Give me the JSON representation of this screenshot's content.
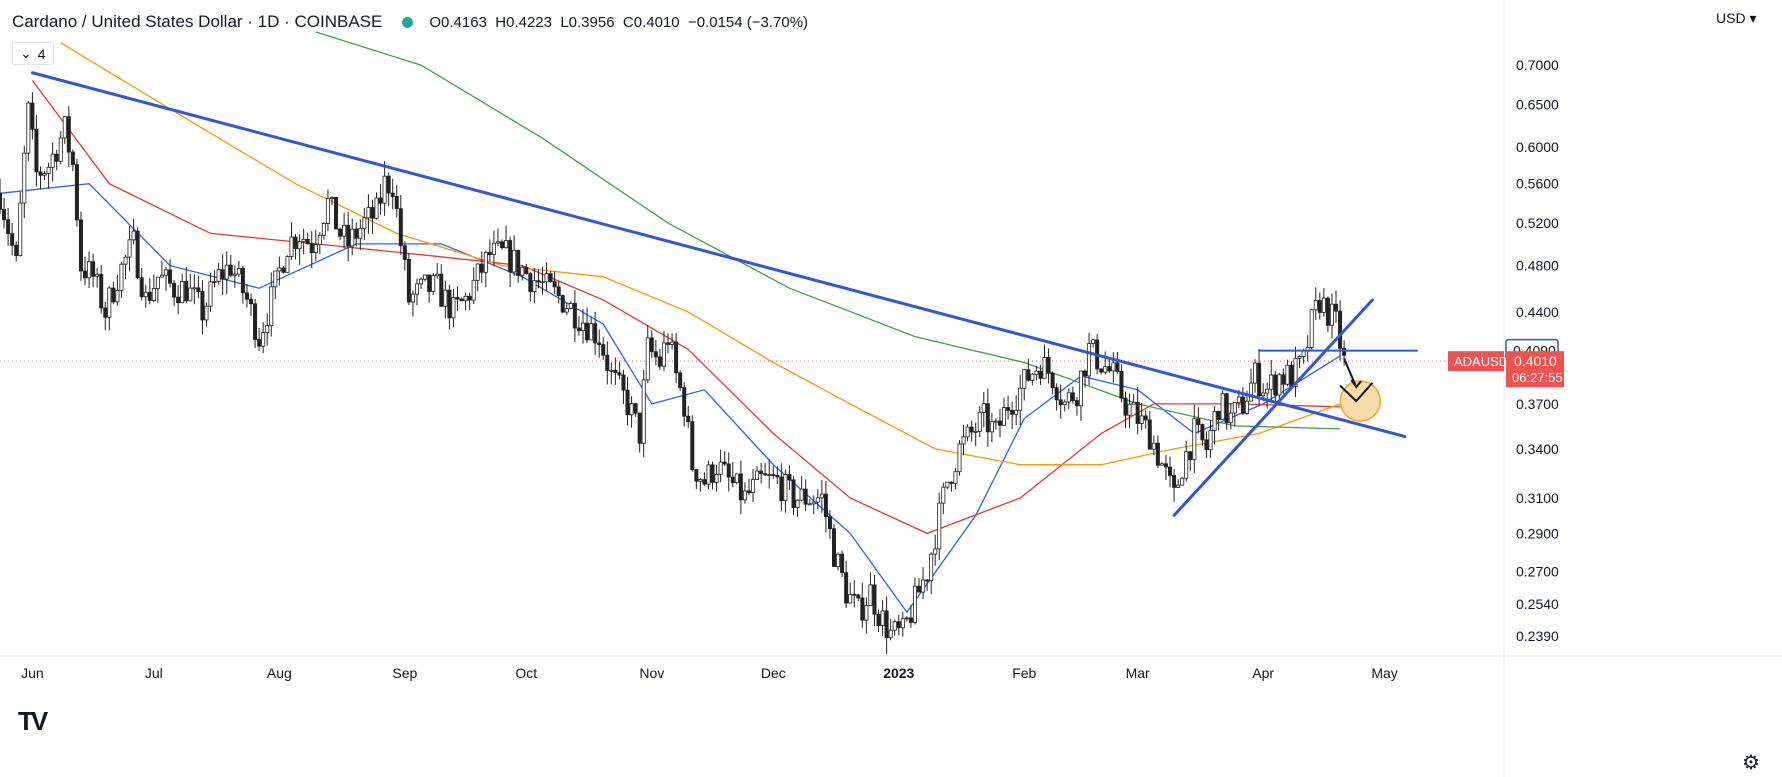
{
  "header": {
    "symbol": "Cardano / United States Dollar · 1D · COINBASE",
    "open": "O0.4163",
    "high": "H0.4223",
    "low": "L0.3956",
    "close": "C0.4010",
    "change": "−0.0154 (−3.70%)",
    "indicator_count": "4",
    "currency": "USD"
  },
  "chart_data": {
    "type": "candlestick",
    "symbol": "ADAUSD",
    "y_axis": {
      "scale": "log",
      "ticks": [
        "0.7000",
        "0.6500",
        "0.6000",
        "0.5600",
        "0.5200",
        "0.4800",
        "0.4400",
        "0.3700",
        "0.3400",
        "0.3100",
        "0.2900",
        "0.2700",
        "0.2540",
        "0.2390"
      ],
      "ylim": [
        0.232,
        0.745
      ]
    },
    "x_axis": {
      "ticks": [
        "Jun",
        "Jul",
        "Aug",
        "Sep",
        "Oct",
        "Nov",
        "Dec",
        "2023",
        "Feb",
        "Mar",
        "Apr",
        "May"
      ],
      "tick_dates": [
        "2022-06-01",
        "2022-07-01",
        "2022-08-01",
        "2022-09-01",
        "2022-10-01",
        "2022-11-01",
        "2022-12-01",
        "2023-01-01",
        "2023-02-01",
        "2023-03-01",
        "2023-04-01",
        "2023-05-01"
      ],
      "xlim": [
        "2022-05-24",
        "2023-05-30"
      ]
    },
    "last_price": {
      "label": "ADAUSD",
      "value": "0.4010",
      "countdown": "06:27:55",
      "price": 0.401
    },
    "level_marker": {
      "value": "0.4090",
      "price": 0.409
    },
    "price_path": [
      [
        "2022-05-24",
        0.55
      ],
      [
        "2022-05-28",
        0.48
      ],
      [
        "2022-05-31",
        0.64
      ],
      [
        "2022-06-02",
        0.57
      ],
      [
        "2022-06-05",
        0.58
      ],
      [
        "2022-06-09",
        0.62
      ],
      [
        "2022-06-11",
        0.58
      ],
      [
        "2022-06-13",
        0.48
      ],
      [
        "2022-06-16",
        0.47
      ],
      [
        "2022-06-19",
        0.44
      ],
      [
        "2022-06-22",
        0.47
      ],
      [
        "2022-06-26",
        0.5
      ],
      [
        "2022-06-29",
        0.45
      ],
      [
        "2022-07-02",
        0.47
      ],
      [
        "2022-07-06",
        0.46
      ],
      [
        "2022-07-09",
        0.46
      ],
      [
        "2022-07-13",
        0.44
      ],
      [
        "2022-07-17",
        0.47
      ],
      [
        "2022-07-20",
        0.48
      ],
      [
        "2022-07-24",
        0.45
      ],
      [
        "2022-07-27",
        0.42
      ],
      [
        "2022-07-30",
        0.45
      ],
      [
        "2022-08-03",
        0.5
      ],
      [
        "2022-08-06",
        0.51
      ],
      [
        "2022-08-09",
        0.5
      ],
      [
        "2022-08-13",
        0.54
      ],
      [
        "2022-08-16",
        0.51
      ],
      [
        "2022-08-18",
        0.5
      ],
      [
        "2022-08-22",
        0.52
      ],
      [
        "2022-08-25",
        0.53
      ],
      [
        "2022-08-27",
        0.56
      ],
      [
        "2022-08-29",
        0.56
      ],
      [
        "2022-08-31",
        0.5
      ],
      [
        "2022-09-02",
        0.45
      ],
      [
        "2022-09-06",
        0.46
      ],
      [
        "2022-09-09",
        0.46
      ],
      [
        "2022-09-13",
        0.44
      ],
      [
        "2022-09-16",
        0.45
      ],
      [
        "2022-09-19",
        0.47
      ],
      [
        "2022-09-22",
        0.49
      ],
      [
        "2022-09-26",
        0.49
      ],
      [
        "2022-09-29",
        0.48
      ],
      [
        "2022-10-02",
        0.47
      ],
      [
        "2022-10-06",
        0.46
      ],
      [
        "2022-10-10",
        0.45
      ],
      [
        "2022-10-13",
        0.44
      ],
      [
        "2022-10-16",
        0.43
      ],
      [
        "2022-10-19",
        0.42
      ],
      [
        "2022-10-22",
        0.39
      ],
      [
        "2022-10-26",
        0.37
      ],
      [
        "2022-10-29",
        0.35
      ],
      [
        "2022-10-31",
        0.41
      ],
      [
        "2022-11-03",
        0.4
      ],
      [
        "2022-11-05",
        0.42
      ],
      [
        "2022-11-07",
        0.39
      ],
      [
        "2022-11-09",
        0.37
      ],
      [
        "2022-11-11",
        0.33
      ],
      [
        "2022-11-14",
        0.32
      ],
      [
        "2022-11-17",
        0.33
      ],
      [
        "2022-11-20",
        0.32
      ],
      [
        "2022-11-24",
        0.31
      ],
      [
        "2022-11-28",
        0.32
      ],
      [
        "2022-12-02",
        0.32
      ],
      [
        "2022-12-06",
        0.31
      ],
      [
        "2022-12-10",
        0.31
      ],
      [
        "2022-12-13",
        0.31
      ],
      [
        "2022-12-16",
        0.28
      ],
      [
        "2022-12-19",
        0.26
      ],
      [
        "2022-12-22",
        0.25
      ],
      [
        "2022-12-25",
        0.26
      ],
      [
        "2022-12-27",
        0.25
      ],
      [
        "2022-12-30",
        0.24
      ],
      [
        "2023-01-02",
        0.24
      ],
      [
        "2023-01-04",
        0.25
      ],
      [
        "2023-01-08",
        0.27
      ],
      [
        "2023-01-10",
        0.29
      ],
      [
        "2023-01-13",
        0.32
      ],
      [
        "2023-01-16",
        0.34
      ],
      [
        "2023-01-19",
        0.35
      ],
      [
        "2023-01-22",
        0.36
      ],
      [
        "2023-01-25",
        0.35
      ],
      [
        "2023-01-28",
        0.37
      ],
      [
        "2023-01-31",
        0.38
      ],
      [
        "2023-02-02",
        0.39
      ],
      [
        "2023-02-05",
        0.4
      ],
      [
        "2023-02-08",
        0.39
      ],
      [
        "2023-02-11",
        0.37
      ],
      [
        "2023-02-14",
        0.38
      ],
      [
        "2023-02-17",
        0.41
      ],
      [
        "2023-02-20",
        0.4
      ],
      [
        "2023-02-23",
        0.39
      ],
      [
        "2023-02-26",
        0.37
      ],
      [
        "2023-03-01",
        0.36
      ],
      [
        "2023-03-04",
        0.35
      ],
      [
        "2023-03-07",
        0.33
      ],
      [
        "2023-03-10",
        0.31
      ],
      [
        "2023-03-12",
        0.33
      ],
      [
        "2023-03-15",
        0.35
      ],
      [
        "2023-03-18",
        0.34
      ],
      [
        "2023-03-21",
        0.37
      ],
      [
        "2023-03-24",
        0.36
      ],
      [
        "2023-03-27",
        0.37
      ],
      [
        "2023-03-30",
        0.39
      ],
      [
        "2023-04-02",
        0.38
      ],
      [
        "2023-04-05",
        0.39
      ],
      [
        "2023-04-08",
        0.39
      ],
      [
        "2023-04-11",
        0.4
      ],
      [
        "2023-04-13",
        0.43
      ],
      [
        "2023-04-15",
        0.45
      ],
      [
        "2023-04-17",
        0.44
      ],
      [
        "2023-04-19",
        0.43
      ],
      [
        "2023-04-21",
        0.4
      ]
    ],
    "moving_averages": [
      {
        "color": "#2962ff",
        "points": [
          [
            "2022-05-24",
            0.55
          ],
          [
            "2022-06-15",
            0.56
          ],
          [
            "2022-07-05",
            0.48
          ],
          [
            "2022-07-27",
            0.46
          ],
          [
            "2022-08-20",
            0.5
          ],
          [
            "2022-09-10",
            0.5
          ],
          [
            "2022-09-30",
            0.47
          ],
          [
            "2022-10-20",
            0.43
          ],
          [
            "2022-11-01",
            0.37
          ],
          [
            "2022-11-14",
            0.38
          ],
          [
            "2022-12-01",
            0.33
          ],
          [
            "2022-12-20",
            0.29
          ],
          [
            "2023-01-03",
            0.25
          ],
          [
            "2023-01-20",
            0.3
          ],
          [
            "2023-02-01",
            0.36
          ],
          [
            "2023-02-15",
            0.39
          ],
          [
            "2023-03-01",
            0.38
          ],
          [
            "2023-03-15",
            0.35
          ],
          [
            "2023-04-01",
            0.37
          ],
          [
            "2023-04-20",
            0.405
          ]
        ]
      },
      {
        "color": "#e53935",
        "points": [
          [
            "2022-06-01",
            0.68
          ],
          [
            "2022-06-20",
            0.56
          ],
          [
            "2022-07-15",
            0.51
          ],
          [
            "2022-08-10",
            0.5
          ],
          [
            "2022-09-05",
            0.49
          ],
          [
            "2022-09-30",
            0.48
          ],
          [
            "2022-10-20",
            0.45
          ],
          [
            "2022-11-10",
            0.41
          ],
          [
            "2022-12-01",
            0.35
          ],
          [
            "2022-12-20",
            0.31
          ],
          [
            "2023-01-08",
            0.29
          ],
          [
            "2023-01-31",
            0.31
          ],
          [
            "2023-02-20",
            0.35
          ],
          [
            "2023-03-05",
            0.37
          ],
          [
            "2023-03-25",
            0.37
          ],
          [
            "2023-04-20",
            0.368
          ]
        ]
      },
      {
        "color": "#ff9800",
        "points": [
          [
            "2022-06-08",
            0.73
          ],
          [
            "2022-07-10",
            0.63
          ],
          [
            "2022-08-05",
            0.56
          ],
          [
            "2022-08-30",
            0.51
          ],
          [
            "2022-09-25",
            0.48
          ],
          [
            "2022-10-20",
            0.47
          ],
          [
            "2022-11-10",
            0.44
          ],
          [
            "2022-12-01",
            0.4
          ],
          [
            "2022-12-20",
            0.37
          ],
          [
            "2023-01-10",
            0.34
          ],
          [
            "2023-01-31",
            0.33
          ],
          [
            "2023-02-20",
            0.33
          ],
          [
            "2023-03-10",
            0.34
          ],
          [
            "2023-03-31",
            0.35
          ],
          [
            "2023-04-20",
            0.37
          ]
        ]
      },
      {
        "color": "#43a047",
        "points": [
          [
            "2022-08-10",
            0.745
          ],
          [
            "2022-09-05",
            0.7
          ],
          [
            "2022-10-05",
            0.61
          ],
          [
            "2022-11-05",
            0.52
          ],
          [
            "2022-12-05",
            0.46
          ],
          [
            "2023-01-05",
            0.42
          ],
          [
            "2023-02-01",
            0.4
          ],
          [
            "2023-03-01",
            0.37
          ],
          [
            "2023-03-25",
            0.355
          ],
          [
            "2023-04-20",
            0.353
          ]
        ]
      }
    ],
    "trendlines": [
      {
        "color": "#2f57d6",
        "from": [
          "2022-06-01",
          0.69
        ],
        "to": [
          "2023-05-06",
          0.348
        ]
      },
      {
        "color": "#2f57d6",
        "from": [
          "2023-03-10",
          0.3
        ],
        "to": [
          "2023-04-28",
          0.45
        ]
      },
      {
        "color": "#2f57d6",
        "from": [
          "2023-03-31",
          0.409
        ],
        "to": [
          "2023-05-09",
          0.409
        ]
      }
    ],
    "annotation_arrow": {
      "color": "#131722",
      "from": [
        "2023-04-21",
        0.403
      ],
      "to": [
        "2023-04-24",
        0.382
      ]
    },
    "annotation_check": {
      "color": "#131722",
      "points": [
        [
          "2023-04-20",
          0.383
        ],
        [
          "2023-04-24",
          0.372
        ],
        [
          "2023-04-28",
          0.385
        ]
      ]
    },
    "highlight_circle": {
      "color": "#f5a623",
      "center": [
        "2023-04-25",
        0.372
      ]
    }
  }
}
